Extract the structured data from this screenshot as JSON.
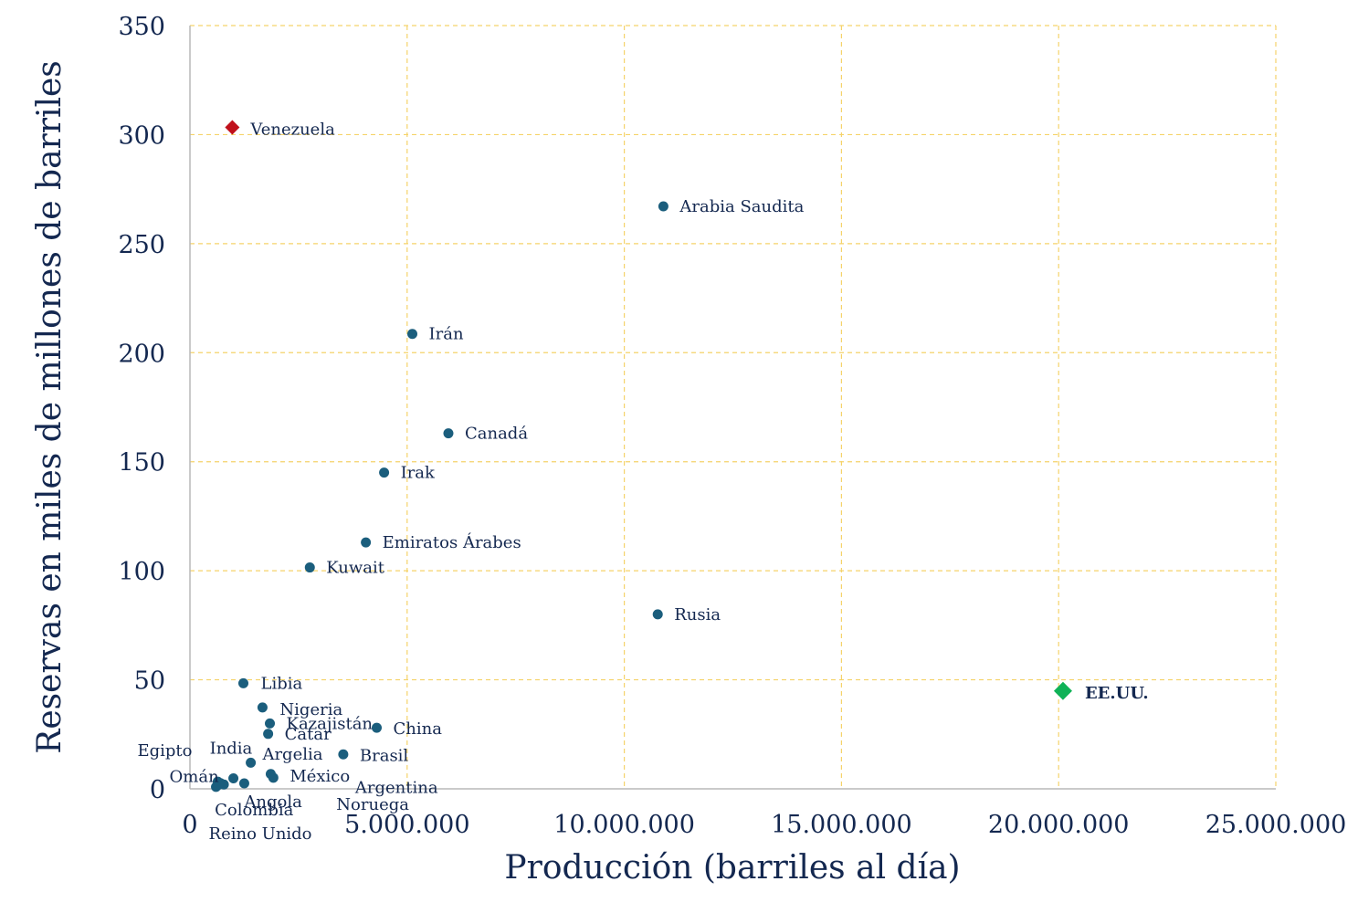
{
  "chart_data": {
    "type": "scatter",
    "title": "",
    "xlabel": "Producción (barriles al día)",
    "ylabel": "Reservas en miles de millones de barriles",
    "xlim": [
      0,
      25000000
    ],
    "ylim": [
      0,
      350
    ],
    "x_ticks": [
      {
        "value": 0,
        "label": "0"
      },
      {
        "value": 5000000,
        "label": "5.000.000"
      },
      {
        "value": 10000000,
        "label": "10.000.000"
      },
      {
        "value": 15000000,
        "label": "15.000.000"
      },
      {
        "value": 20000000,
        "label": "20.000.000"
      },
      {
        "value": 25000000,
        "label": "25.000.000"
      }
    ],
    "y_ticks": [
      {
        "value": 0,
        "label": "0"
      },
      {
        "value": 50,
        "label": "50"
      },
      {
        "value": 100,
        "label": "100"
      },
      {
        "value": 150,
        "label": "150"
      },
      {
        "value": 200,
        "label": "200"
      },
      {
        "value": 250,
        "label": "250"
      },
      {
        "value": 300,
        "label": "300"
      },
      {
        "value": 350,
        "label": "350"
      }
    ],
    "grid": true,
    "colors": {
      "default": "#1b5e7d",
      "highlight_venezuela": "#c0101b",
      "highlight_usa": "#0fb257",
      "grid": "#f5d36a",
      "text": "#142850"
    },
    "points": [
      {
        "label": "Venezuela",
        "x": 975000,
        "y": 303.3,
        "marker": "diamond",
        "color": "#c0101b"
      },
      {
        "label": "EE.UU.",
        "x": 20100000,
        "y": 44.9,
        "marker": "diamond",
        "color": "#0fb257",
        "bold": true
      },
      {
        "label": "Arabia Saudita",
        "x": 10900000,
        "y": 267.1
      },
      {
        "label": "Irán",
        "x": 5120000,
        "y": 208.6
      },
      {
        "label": "Canadá",
        "x": 5950000,
        "y": 163.0
      },
      {
        "label": "Irak",
        "x": 4470000,
        "y": 145.0
      },
      {
        "label": "Emiratos Árabes",
        "x": 4050000,
        "y": 113.0
      },
      {
        "label": "Kuwait",
        "x": 2760000,
        "y": 101.5
      },
      {
        "label": "Rusia",
        "x": 10770000,
        "y": 80.0
      },
      {
        "label": "Libia",
        "x": 1230000,
        "y": 48.4
      },
      {
        "label": "Nigeria",
        "x": 1670000,
        "y": 37.3
      },
      {
        "label": "Kazajistán",
        "x": 1840000,
        "y": 30.0
      },
      {
        "label": "Catar",
        "x": 1800000,
        "y": 25.2
      },
      {
        "label": "China",
        "x": 4300000,
        "y": 28.0
      },
      {
        "label": "Brasil",
        "x": 3530000,
        "y": 15.8
      },
      {
        "label": "Argelia",
        "x": 1860000,
        "y": 6.8
      },
      {
        "label": "India",
        "x": 1400000,
        "y": 12.0
      },
      {
        "label": "Egipto",
        "x": 640000,
        "y": 3.3
      },
      {
        "label": "México",
        "x": 1920000,
        "y": 5.1
      },
      {
        "label": "Omán",
        "x": 1000000,
        "y": 4.8
      },
      {
        "label": "Angola",
        "x": 1250000,
        "y": 2.5
      },
      {
        "label": "Colombia",
        "x": 780000,
        "y": 2.0
      },
      {
        "label": "Reino Unido",
        "x": 600000,
        "y": 0.9
      },
      {
        "label": "Noruega",
        "x": 700000,
        "y": 2.6
      },
      {
        "label": "Argentina",
        "x": 650000,
        "y": 1.8
      }
    ]
  }
}
